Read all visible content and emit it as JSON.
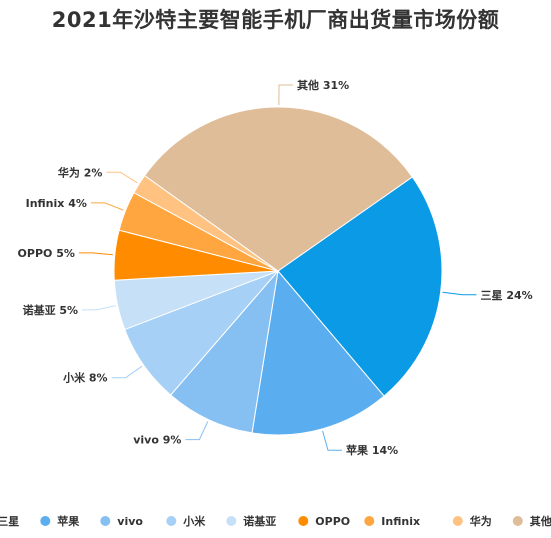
{
  "chart_data": {
    "type": "pie",
    "title": "2021年沙特主要智能手机厂商出货量市场份额",
    "legend_position": "bottom",
    "start_angle_deg": 55,
    "slices": [
      {
        "label": "三星",
        "value": 24,
        "display": "24%",
        "color": "#0a9ae6"
      },
      {
        "label": "苹果",
        "value": 14,
        "display": "14%",
        "color": "#5aaef0"
      },
      {
        "label": "vivo",
        "value": 9,
        "display": "9%",
        "color": "#86c0f3"
      },
      {
        "label": "小米",
        "value": 8,
        "display": "8%",
        "color": "#a6d0f5"
      },
      {
        "label": "诺基亚",
        "value": 5,
        "display": "5%",
        "color": "#c6e0f8"
      },
      {
        "label": "OPPO",
        "value": 5,
        "display": "5%",
        "color": "#ff8c00"
      },
      {
        "label": "Infinix",
        "value": 4,
        "display": "4%",
        "color": "#ffa640"
      },
      {
        "label": "华为",
        "value": 2,
        "display": "2%",
        "color": "#ffc280"
      },
      {
        "label": "其他",
        "value": 31,
        "display": "31%",
        "color": "#dfbd98"
      }
    ]
  }
}
